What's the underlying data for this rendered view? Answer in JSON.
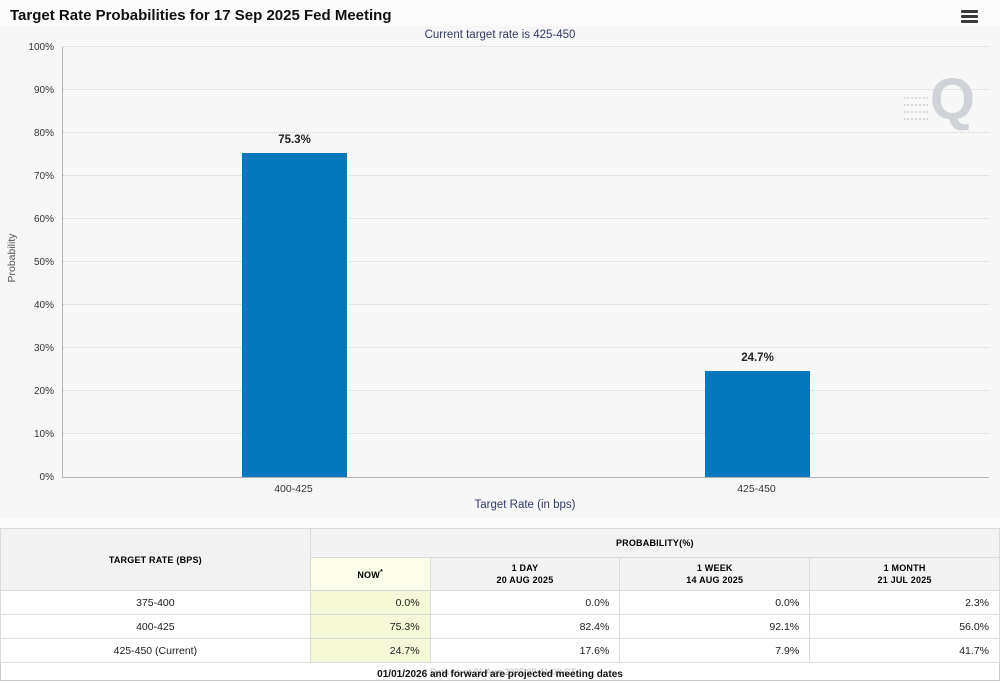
{
  "header": {
    "title": "Target Rate Probabilities for 17 Sep 2025 Fed Meeting"
  },
  "chart_data": {
    "type": "bar",
    "title": "Current target rate is 425-450",
    "categories": [
      "400-425",
      "425-450"
    ],
    "values": [
      75.3,
      24.7
    ],
    "bar_labels": [
      "75.3%",
      "24.7%"
    ],
    "xlabel": "Target Rate (in bps)",
    "ylabel": "Probability",
    "ylim": [
      0,
      100
    ],
    "ytick_step": 10,
    "yticks": [
      "0%",
      "10%",
      "20%",
      "30%",
      "40%",
      "50%",
      "60%",
      "70%",
      "80%",
      "90%",
      "100%"
    ],
    "grid": "horizontal-dotted",
    "legend": "none",
    "bar_color": "#0478bd",
    "watermark": "Q"
  },
  "table": {
    "col_target_rate": "TARGET RATE (BPS)",
    "col_probability": "PROBABILITY(%)",
    "col_now": "NOW",
    "col_now_sup": "*",
    "cols": [
      {
        "line1": "1 DAY",
        "line2": "20 AUG 2025"
      },
      {
        "line1": "1 WEEK",
        "line2": "14 AUG 2025"
      },
      {
        "line1": "1 MONTH",
        "line2": "21 JUL 2025"
      }
    ],
    "rows": [
      {
        "label": "375-400",
        "now": "0.0%",
        "day": "0.0%",
        "week": "0.0%",
        "month": "2.3%"
      },
      {
        "label": "400-425",
        "now": "75.3%",
        "day": "82.4%",
        "week": "92.1%",
        "month": "56.0%"
      },
      {
        "label": "425-450 (Current)",
        "now": "24.7%",
        "day": "17.6%",
        "week": "7.9%",
        "month": "41.7%"
      }
    ],
    "footnote": "* Data as of 21 Aug 2025 09:41:08 CT"
  },
  "footer": {
    "note": "01/01/2026 and forward are projected meeting dates"
  }
}
